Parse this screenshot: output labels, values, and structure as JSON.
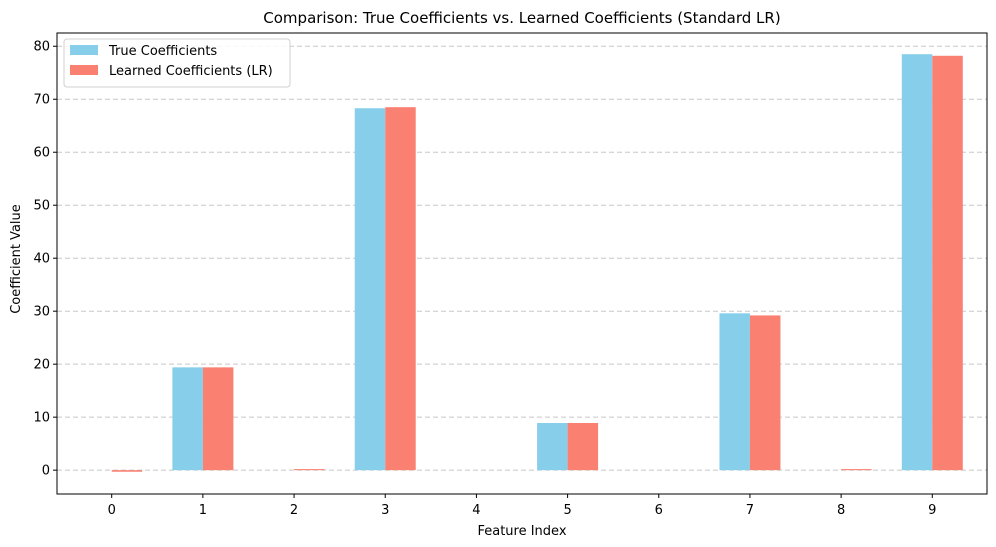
{
  "chart_data": {
    "type": "bar",
    "title": "Comparison: True Coefficients vs. Learned Coefficients (Standard LR)",
    "xlabel": "Feature Index",
    "ylabel": "Coefficient Value",
    "categories": [
      "0",
      "1",
      "2",
      "3",
      "4",
      "5",
      "6",
      "7",
      "8",
      "9"
    ],
    "series": [
      {
        "name": "True Coefficients",
        "color": "#87ceeb",
        "values": [
          0,
          19.4,
          0,
          68.3,
          0,
          8.9,
          0,
          29.6,
          0,
          78.5
        ]
      },
      {
        "name": "Learned Coefficients (LR)",
        "color": "#fa8072",
        "values": [
          -0.3,
          19.4,
          0.2,
          68.5,
          0,
          8.9,
          0,
          29.2,
          0.2,
          78.2
        ]
      }
    ],
    "ylim": [
      -4.5,
      82.5
    ],
    "yticks": [
      0,
      10,
      20,
      30,
      40,
      50,
      60,
      70,
      80
    ],
    "grid": "y-dashed",
    "legend": "top-left"
  }
}
